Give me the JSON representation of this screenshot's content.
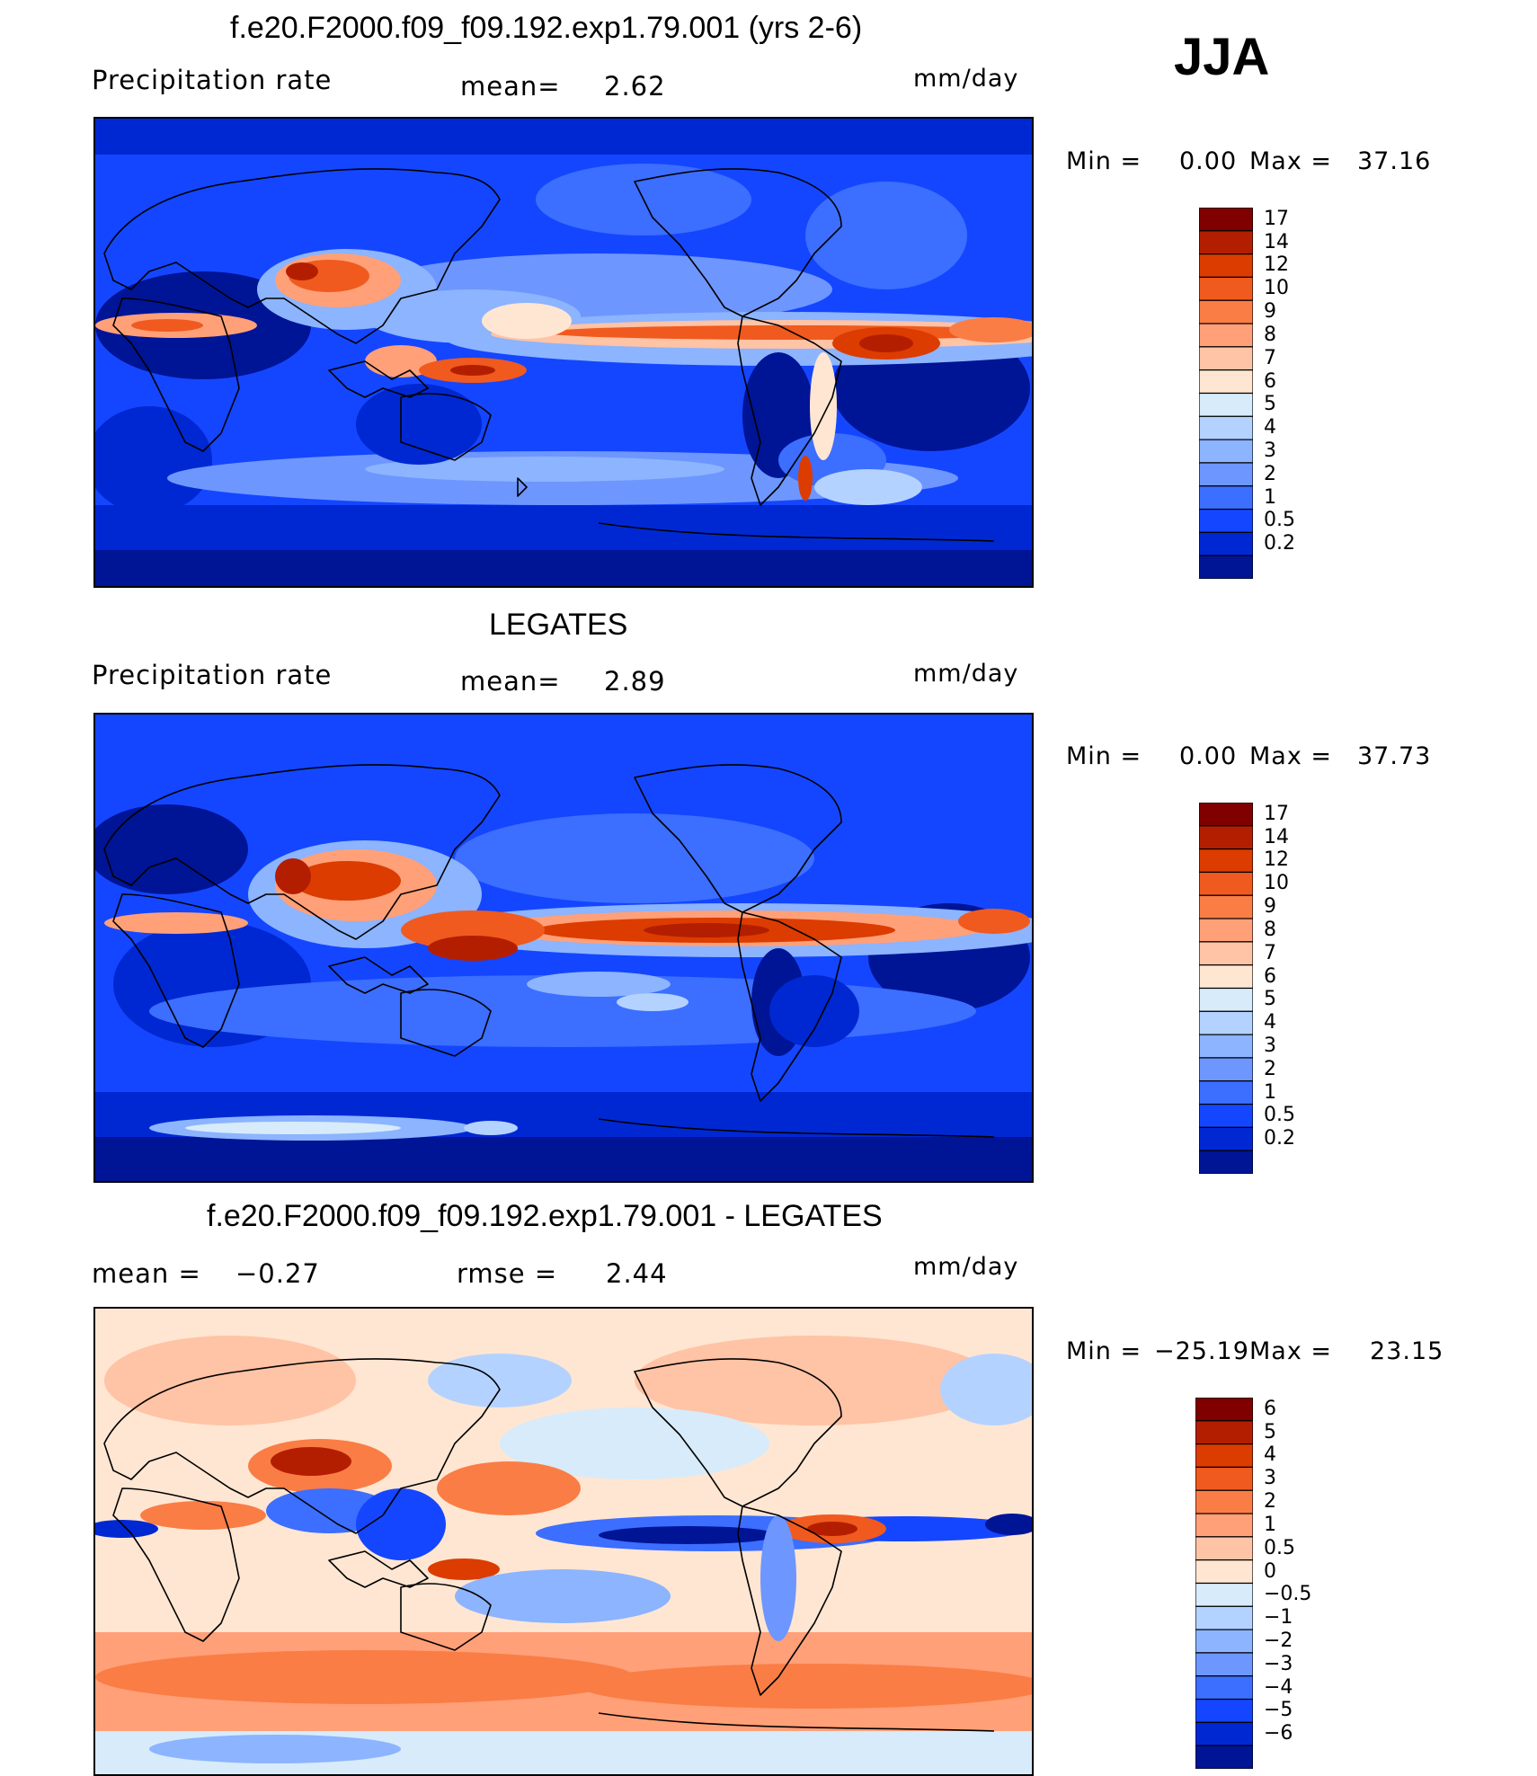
{
  "season": "JJA",
  "units": "mm/day",
  "panels": [
    {
      "title": "f.e20.F2000.f09_f09.192.exp1.79.001 (yrs 2-6)",
      "left_label": "Precipitation rate",
      "center_label": "mean=",
      "center_value": "2.62",
      "min_label": "Min =",
      "min_value": "0.00",
      "max_label": "Max =",
      "max_value": "37.16",
      "colorbar_levels": [
        "17",
        "14",
        "12",
        "10",
        "9",
        "8",
        "7",
        "6",
        "5",
        "4",
        "3",
        "2",
        "1",
        "0.5",
        "0.2"
      ],
      "colorbar_colors": [
        "#800000",
        "#b41e00",
        "#dc3c00",
        "#f05a1e",
        "#fa7d46",
        "#ffa078",
        "#ffc3a5",
        "#ffe6d2",
        "#d7ebfa",
        "#b4d2ff",
        "#8cb4ff",
        "#6e96ff",
        "#3c6eff",
        "#1446ff",
        "#0028d2",
        "#001496"
      ]
    },
    {
      "title": "LEGATES",
      "left_label": "Precipitation rate",
      "center_label": "mean=",
      "center_value": "2.89",
      "min_label": "Min =",
      "min_value": "0.00",
      "max_label": "Max =",
      "max_value": "37.73",
      "colorbar_levels": [
        "17",
        "14",
        "12",
        "10",
        "9",
        "8",
        "7",
        "6",
        "5",
        "4",
        "3",
        "2",
        "1",
        "0.5",
        "0.2"
      ],
      "colorbar_colors": [
        "#800000",
        "#b41e00",
        "#dc3c00",
        "#f05a1e",
        "#fa7d46",
        "#ffa078",
        "#ffc3a5",
        "#ffe6d2",
        "#d7ebfa",
        "#b4d2ff",
        "#8cb4ff",
        "#6e96ff",
        "#3c6eff",
        "#1446ff",
        "#0028d2",
        "#001496"
      ]
    },
    {
      "title": "f.e20.F2000.f09_f09.192.exp1.79.001 - LEGATES",
      "left_label": "mean =",
      "left_value": "−0.27",
      "center_label": "rmse =",
      "center_value": "2.44",
      "min_label": "Min =",
      "min_value": "−25.19",
      "max_label": "Max =",
      "max_value": "23.15",
      "colorbar_levels": [
        "6",
        "5",
        "4",
        "3",
        "2",
        "1",
        "0.5",
        "0",
        "−0.5",
        "−1",
        "−2",
        "−3",
        "−4",
        "−5",
        "−6"
      ],
      "colorbar_colors": [
        "#800000",
        "#b41e00",
        "#dc3c00",
        "#f05a1e",
        "#fa7d46",
        "#ffa078",
        "#ffc3a5",
        "#ffe6d2",
        "#d7ebfa",
        "#b4d2ff",
        "#8cb4ff",
        "#6e96ff",
        "#3c6eff",
        "#1446ff",
        "#0028d2",
        "#001496"
      ]
    }
  ]
}
